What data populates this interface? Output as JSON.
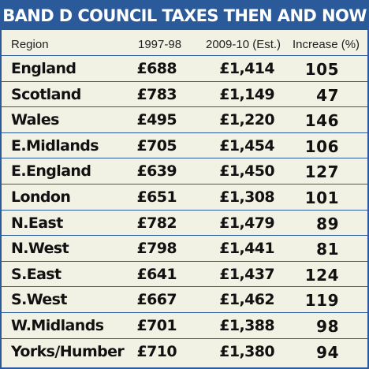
{
  "title": "BAND D COUNCIL TAXES THEN AND NOW",
  "colors": {
    "accent": "#2a5a9a",
    "background": "#f1f1e4",
    "text": "#111111"
  },
  "chart_data": {
    "type": "table",
    "title": "BAND D COUNCIL TAXES THEN AND NOW",
    "columns": [
      "Region",
      "1997-98",
      "2009-10 (Est.)",
      "Increase (%)"
    ],
    "rows": [
      [
        "England",
        "£688",
        "£1,414",
        "105"
      ],
      [
        "Scotland",
        "£783",
        "£1,149",
        "47"
      ],
      [
        "Wales",
        "£495",
        "£1,220",
        "146"
      ],
      [
        "E.Midlands",
        "£705",
        "£1,454",
        "106"
      ],
      [
        "E.England",
        "£639",
        "£1,450",
        "127"
      ],
      [
        "London",
        "£651",
        "£1,308",
        "101"
      ],
      [
        "N.East",
        "£782",
        "£1,479",
        "89"
      ],
      [
        "N.West",
        "£798",
        "£1,441",
        "81"
      ],
      [
        "S.East",
        "£641",
        "£1,437",
        "124"
      ],
      [
        "S.West",
        "£667",
        "£1,462",
        "119"
      ],
      [
        "W.Midlands",
        "£701",
        "£1,388",
        "98"
      ],
      [
        "Yorks/Humber",
        "£710",
        "£1,380",
        "94"
      ]
    ]
  }
}
